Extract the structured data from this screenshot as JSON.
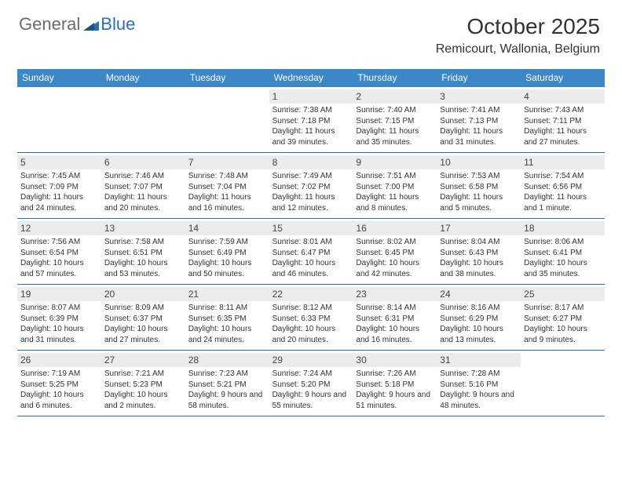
{
  "logo": {
    "general": "General",
    "blue": "Blue"
  },
  "title": "October 2025",
  "location": "Remicourt, Wallonia, Belgium",
  "weekdays": [
    "Sunday",
    "Monday",
    "Tuesday",
    "Wednesday",
    "Thursday",
    "Friday",
    "Saturday"
  ],
  "colors": {
    "header_bar": "#3b87c8",
    "week_divider": "#2f6fa8",
    "daynum_bg": "#ececec",
    "logo_gray": "#6b6b6b",
    "logo_blue": "#2b6fb3"
  },
  "weeks": [
    [
      {
        "n": "",
        "sunrise": "",
        "sunset": "",
        "daylight": ""
      },
      {
        "n": "",
        "sunrise": "",
        "sunset": "",
        "daylight": ""
      },
      {
        "n": "",
        "sunrise": "",
        "sunset": "",
        "daylight": ""
      },
      {
        "n": "1",
        "sunrise": "Sunrise: 7:38 AM",
        "sunset": "Sunset: 7:18 PM",
        "daylight": "Daylight: 11 hours and 39 minutes."
      },
      {
        "n": "2",
        "sunrise": "Sunrise: 7:40 AM",
        "sunset": "Sunset: 7:15 PM",
        "daylight": "Daylight: 11 hours and 35 minutes."
      },
      {
        "n": "3",
        "sunrise": "Sunrise: 7:41 AM",
        "sunset": "Sunset: 7:13 PM",
        "daylight": "Daylight: 11 hours and 31 minutes."
      },
      {
        "n": "4",
        "sunrise": "Sunrise: 7:43 AM",
        "sunset": "Sunset: 7:11 PM",
        "daylight": "Daylight: 11 hours and 27 minutes."
      }
    ],
    [
      {
        "n": "5",
        "sunrise": "Sunrise: 7:45 AM",
        "sunset": "Sunset: 7:09 PM",
        "daylight": "Daylight: 11 hours and 24 minutes."
      },
      {
        "n": "6",
        "sunrise": "Sunrise: 7:46 AM",
        "sunset": "Sunset: 7:07 PM",
        "daylight": "Daylight: 11 hours and 20 minutes."
      },
      {
        "n": "7",
        "sunrise": "Sunrise: 7:48 AM",
        "sunset": "Sunset: 7:04 PM",
        "daylight": "Daylight: 11 hours and 16 minutes."
      },
      {
        "n": "8",
        "sunrise": "Sunrise: 7:49 AM",
        "sunset": "Sunset: 7:02 PM",
        "daylight": "Daylight: 11 hours and 12 minutes."
      },
      {
        "n": "9",
        "sunrise": "Sunrise: 7:51 AM",
        "sunset": "Sunset: 7:00 PM",
        "daylight": "Daylight: 11 hours and 8 minutes."
      },
      {
        "n": "10",
        "sunrise": "Sunrise: 7:53 AM",
        "sunset": "Sunset: 6:58 PM",
        "daylight": "Daylight: 11 hours and 5 minutes."
      },
      {
        "n": "11",
        "sunrise": "Sunrise: 7:54 AM",
        "sunset": "Sunset: 6:56 PM",
        "daylight": "Daylight: 11 hours and 1 minute."
      }
    ],
    [
      {
        "n": "12",
        "sunrise": "Sunrise: 7:56 AM",
        "sunset": "Sunset: 6:54 PM",
        "daylight": "Daylight: 10 hours and 57 minutes."
      },
      {
        "n": "13",
        "sunrise": "Sunrise: 7:58 AM",
        "sunset": "Sunset: 6:51 PM",
        "daylight": "Daylight: 10 hours and 53 minutes."
      },
      {
        "n": "14",
        "sunrise": "Sunrise: 7:59 AM",
        "sunset": "Sunset: 6:49 PM",
        "daylight": "Daylight: 10 hours and 50 minutes."
      },
      {
        "n": "15",
        "sunrise": "Sunrise: 8:01 AM",
        "sunset": "Sunset: 6:47 PM",
        "daylight": "Daylight: 10 hours and 46 minutes."
      },
      {
        "n": "16",
        "sunrise": "Sunrise: 8:02 AM",
        "sunset": "Sunset: 6:45 PM",
        "daylight": "Daylight: 10 hours and 42 minutes."
      },
      {
        "n": "17",
        "sunrise": "Sunrise: 8:04 AM",
        "sunset": "Sunset: 6:43 PM",
        "daylight": "Daylight: 10 hours and 38 minutes."
      },
      {
        "n": "18",
        "sunrise": "Sunrise: 8:06 AM",
        "sunset": "Sunset: 6:41 PM",
        "daylight": "Daylight: 10 hours and 35 minutes."
      }
    ],
    [
      {
        "n": "19",
        "sunrise": "Sunrise: 8:07 AM",
        "sunset": "Sunset: 6:39 PM",
        "daylight": "Daylight: 10 hours and 31 minutes."
      },
      {
        "n": "20",
        "sunrise": "Sunrise: 8:09 AM",
        "sunset": "Sunset: 6:37 PM",
        "daylight": "Daylight: 10 hours and 27 minutes."
      },
      {
        "n": "21",
        "sunrise": "Sunrise: 8:11 AM",
        "sunset": "Sunset: 6:35 PM",
        "daylight": "Daylight: 10 hours and 24 minutes."
      },
      {
        "n": "22",
        "sunrise": "Sunrise: 8:12 AM",
        "sunset": "Sunset: 6:33 PM",
        "daylight": "Daylight: 10 hours and 20 minutes."
      },
      {
        "n": "23",
        "sunrise": "Sunrise: 8:14 AM",
        "sunset": "Sunset: 6:31 PM",
        "daylight": "Daylight: 10 hours and 16 minutes."
      },
      {
        "n": "24",
        "sunrise": "Sunrise: 8:16 AM",
        "sunset": "Sunset: 6:29 PM",
        "daylight": "Daylight: 10 hours and 13 minutes."
      },
      {
        "n": "25",
        "sunrise": "Sunrise: 8:17 AM",
        "sunset": "Sunset: 6:27 PM",
        "daylight": "Daylight: 10 hours and 9 minutes."
      }
    ],
    [
      {
        "n": "26",
        "sunrise": "Sunrise: 7:19 AM",
        "sunset": "Sunset: 5:25 PM",
        "daylight": "Daylight: 10 hours and 6 minutes."
      },
      {
        "n": "27",
        "sunrise": "Sunrise: 7:21 AM",
        "sunset": "Sunset: 5:23 PM",
        "daylight": "Daylight: 10 hours and 2 minutes."
      },
      {
        "n": "28",
        "sunrise": "Sunrise: 7:23 AM",
        "sunset": "Sunset: 5:21 PM",
        "daylight": "Daylight: 9 hours and 58 minutes."
      },
      {
        "n": "29",
        "sunrise": "Sunrise: 7:24 AM",
        "sunset": "Sunset: 5:20 PM",
        "daylight": "Daylight: 9 hours and 55 minutes."
      },
      {
        "n": "30",
        "sunrise": "Sunrise: 7:26 AM",
        "sunset": "Sunset: 5:18 PM",
        "daylight": "Daylight: 9 hours and 51 minutes."
      },
      {
        "n": "31",
        "sunrise": "Sunrise: 7:28 AM",
        "sunset": "Sunset: 5:16 PM",
        "daylight": "Daylight: 9 hours and 48 minutes."
      },
      {
        "n": "",
        "sunrise": "",
        "sunset": "",
        "daylight": ""
      }
    ]
  ]
}
